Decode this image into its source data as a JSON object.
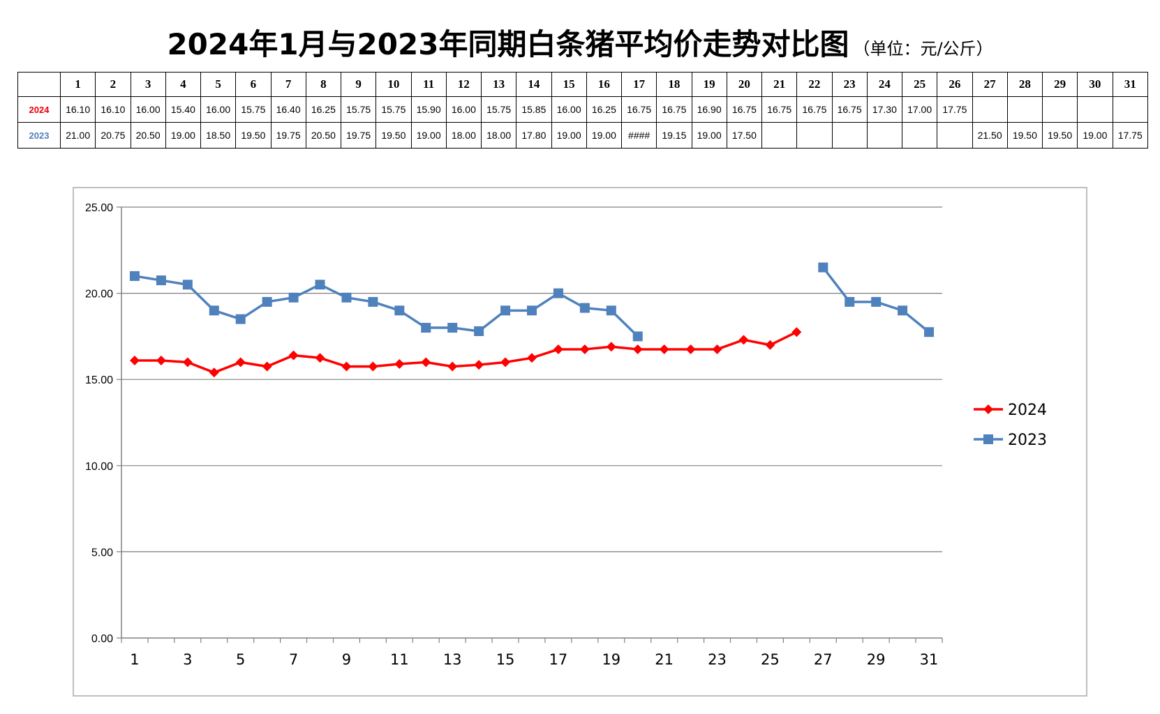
{
  "title": {
    "main": "2024年1月与2023年同期白条猪平均价走势对比图",
    "unit": "（单位：元/公斤）"
  },
  "table": {
    "days": [
      "1",
      "2",
      "3",
      "4",
      "5",
      "6",
      "7",
      "8",
      "9",
      "10",
      "11",
      "12",
      "13",
      "14",
      "15",
      "16",
      "17",
      "18",
      "19",
      "20",
      "21",
      "22",
      "23",
      "24",
      "25",
      "26",
      "27",
      "28",
      "29",
      "30",
      "31"
    ],
    "rows": [
      {
        "label": "2024",
        "color": "#e8000b",
        "cells": [
          "16.10",
          "16.10",
          "16.00",
          "15.40",
          "16.00",
          "15.75",
          "16.40",
          "16.25",
          "15.75",
          "15.75",
          "15.90",
          "16.00",
          "15.75",
          "15.85",
          "16.00",
          "16.25",
          "16.75",
          "16.75",
          "16.90",
          "16.75",
          "16.75",
          "16.75",
          "16.75",
          "17.30",
          "17.00",
          "17.75",
          "",
          "",
          "",
          "",
          ""
        ]
      },
      {
        "label": "2023",
        "color": "#4f81bd",
        "cells": [
          "21.00",
          "20.75",
          "20.50",
          "19.00",
          "18.50",
          "19.50",
          "19.75",
          "20.50",
          "19.75",
          "19.50",
          "19.00",
          "18.00",
          "18.00",
          "17.80",
          "19.00",
          "19.00",
          "####",
          "19.15",
          "19.00",
          "17.50",
          "",
          "",
          "",
          "",
          "",
          "",
          "21.50",
          "19.50",
          "19.50",
          "19.00",
          "17.75"
        ]
      }
    ]
  },
  "chart_data": {
    "type": "line",
    "x": [
      1,
      2,
      3,
      4,
      5,
      6,
      7,
      8,
      9,
      10,
      11,
      12,
      13,
      14,
      15,
      16,
      17,
      18,
      19,
      20,
      21,
      22,
      23,
      24,
      25,
      26,
      27,
      28,
      29,
      30,
      31
    ],
    "x_tick_labels": [
      "1",
      "3",
      "5",
      "7",
      "9",
      "11",
      "13",
      "15",
      "17",
      "19",
      "21",
      "23",
      "25",
      "27",
      "29",
      "31"
    ],
    "y_tick_labels": [
      "25.00",
      "20.00",
      "15.00",
      "10.00",
      "5.00",
      "0.00"
    ],
    "ylim": [
      0,
      25
    ],
    "grid": true,
    "legend_position": "right",
    "series": [
      {
        "name": "2024",
        "color": "#ff0000",
        "marker": "diamond",
        "values": [
          16.1,
          16.1,
          16.0,
          15.4,
          16.0,
          15.75,
          16.4,
          16.25,
          15.75,
          15.75,
          15.9,
          16.0,
          15.75,
          15.85,
          16.0,
          16.25,
          16.75,
          16.75,
          16.9,
          16.75,
          16.75,
          16.75,
          16.75,
          17.3,
          17.0,
          17.75,
          null,
          null,
          null,
          null,
          null
        ]
      },
      {
        "name": "2023",
        "color": "#4f81bd",
        "marker": "square",
        "values": [
          21.0,
          20.75,
          20.5,
          19.0,
          18.5,
          19.5,
          19.75,
          20.5,
          19.75,
          19.5,
          19.0,
          18.0,
          18.0,
          17.8,
          19.0,
          19.0,
          20.0,
          19.15,
          19.0,
          17.5,
          null,
          null,
          null,
          null,
          null,
          null,
          21.5,
          19.5,
          19.5,
          19.0,
          17.75
        ]
      }
    ]
  }
}
